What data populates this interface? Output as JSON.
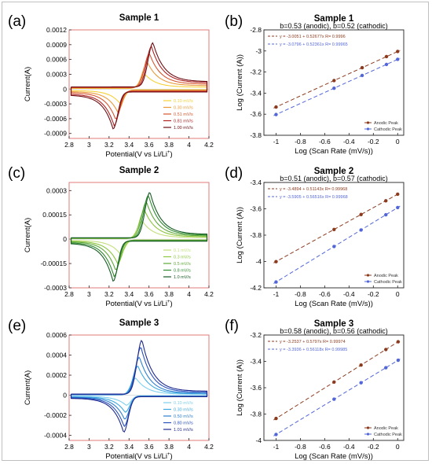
{
  "chart_data": [
    {
      "panel_label": "(a)",
      "type": "line",
      "title": "Sample 1",
      "xlabel": "Potential(V vs Li/Li",
      "xlabel_sup": "+",
      "xlabel_end": ")",
      "ylabel": "Current(A)",
      "xlim": [
        2.8,
        4.2
      ],
      "ylim": [
        -0.001,
        0.0012
      ],
      "xticks": [
        "2.8",
        "3",
        "3.2",
        "3.4",
        "3.6",
        "3.8",
        "4",
        "4.2"
      ],
      "xtick_values": [
        2.8,
        3.0,
        3.2,
        3.4,
        3.6,
        3.8,
        4.0,
        4.2
      ],
      "yticks": [
        "0.0012",
        "0.0009",
        "0.0006",
        "0.0003",
        "0",
        "-0.0003",
        "-0.0006",
        "-0.0009"
      ],
      "ytick_values": [
        0.0012,
        0.0009,
        0.0006,
        0.0003,
        0,
        -0.0003,
        -0.0006,
        -0.0009
      ],
      "legend_position": "bottom-right",
      "series": [
        {
          "name": "0.10 mV/s",
          "color": "#f5d13a",
          "ox_peak": [
            3.565,
            0.00029
          ],
          "red_peak": [
            3.305,
            -0.00028
          ],
          "base_high": 4e-05,
          "base_low": -3e-05
        },
        {
          "name": "0.30 mV/s",
          "color": "#e99a3a",
          "ox_peak": [
            3.585,
            0.00054
          ],
          "red_peak": [
            3.285,
            -0.00046
          ],
          "base_high": 7e-05,
          "base_low": -5e-05
        },
        {
          "name": "0.51 mV/s",
          "color": "#d7572f",
          "ox_peak": [
            3.605,
            0.00072
          ],
          "red_peak": [
            3.265,
            -0.00061
          ],
          "base_high": 0.0001,
          "base_low": -7e-05
        },
        {
          "name": "0.81 mV/s",
          "color": "#b02322",
          "ox_peak": [
            3.625,
            0.00086
          ],
          "red_peak": [
            3.25,
            -0.00074
          ],
          "base_high": 0.00013,
          "base_low": -0.0001
        },
        {
          "name": "1.00 mV/s",
          "color": "#6e0f14",
          "ox_peak": [
            3.64,
            0.00094
          ],
          "red_peak": [
            3.24,
            -0.00081
          ],
          "base_high": 0.00015,
          "base_low": -0.00012
        }
      ]
    },
    {
      "panel_label": "(b)",
      "type": "scatter",
      "title": "Sample 1",
      "subtitle": "b=0.53 (anodic), b=0.52 (cathodic)",
      "xlabel": "Log (Scan Rate (mV/s))",
      "ylabel": "Log (Current (A))",
      "xlim": [
        -1.1,
        0.05
      ],
      "ylim": [
        -3.8,
        -2.8
      ],
      "xticks": [
        "-1",
        "-0.8",
        "-0.6",
        "-0.4",
        "-0.2",
        "0"
      ],
      "xtick_values": [
        -1,
        -0.8,
        -0.6,
        -0.4,
        -0.2,
        0
      ],
      "yticks": [
        "-2.8",
        "-3",
        "-3.2",
        "-3.4",
        "-3.6",
        "-3.8"
      ],
      "ytick_values": [
        -2.8,
        -3.0,
        -3.2,
        -3.4,
        -3.6,
        -3.8
      ],
      "legend_position": "bottom-right",
      "x": [
        -1,
        -0.523,
        -0.292,
        -0.092,
        0
      ],
      "series": [
        {
          "name": "Anodic Peak",
          "color": "#8b3a1e",
          "intercept": -3.0051,
          "slope": 0.52677,
          "fit_label": "y = -3.0051 + 0.52677x   R= 0.9996"
        },
        {
          "name": "Cathodic Peak",
          "color": "#5266d8",
          "intercept": -3.0796,
          "slope": 0.52361,
          "fit_label": "y = -3.0796 + 0.52361x   R= 0.99965"
        }
      ]
    },
    {
      "panel_label": "(c)",
      "type": "line",
      "title": "Sample 2",
      "xlabel": "Potential(V vs Li/Li",
      "xlabel_sup": "+",
      "xlabel_end": ")",
      "ylabel": "Current(A)",
      "xlim": [
        2.8,
        4.2
      ],
      "ylim": [
        -0.0003,
        0.00035
      ],
      "xticks": [
        "2.8",
        "3",
        "3.2",
        "3.4",
        "3.6",
        "3.8",
        "4",
        "4.2"
      ],
      "xtick_values": [
        2.8,
        3.0,
        3.2,
        3.4,
        3.6,
        3.8,
        4.0,
        4.2
      ],
      "yticks": [
        "0.0003",
        "0.00015",
        "0",
        "-0.00015",
        "-0.0003"
      ],
      "ytick_values": [
        0.0003,
        0.00015,
        0,
        -0.00015,
        -0.0003
      ],
      "legend_position": "bottom-right",
      "series": [
        {
          "name": "0.1 mV/s",
          "color": "#c3df7c",
          "ox_peak": [
            3.535,
            0.00011
          ],
          "red_peak": [
            3.31,
            -9e-05
          ],
          "base_high": 1e-05,
          "base_low": -8e-06
        },
        {
          "name": "0.3 mV/s",
          "color": "#8dc63f",
          "ox_peak": [
            3.555,
            0.00018
          ],
          "red_peak": [
            3.285,
            -0.00015
          ],
          "base_high": 1.5e-05,
          "base_low": -1.2e-05
        },
        {
          "name": "0.5 mV/s",
          "color": "#5fa83a",
          "ox_peak": [
            3.575,
            0.00023
          ],
          "red_peak": [
            3.265,
            -0.00019
          ],
          "base_high": 2e-05,
          "base_low": -1.5e-05
        },
        {
          "name": "0.8 mV/s",
          "color": "#2f8a2f",
          "ox_peak": [
            3.595,
            0.00027
          ],
          "red_peak": [
            3.25,
            -0.00023
          ],
          "base_high": 2.5e-05,
          "base_low": -2e-05
        },
        {
          "name": "1.0 mV/s",
          "color": "#175c23",
          "ox_peak": [
            3.61,
            0.00029
          ],
          "red_peak": [
            3.24,
            -0.00026
          ],
          "base_high": 3e-05,
          "base_low": -2.5e-05
        }
      ]
    },
    {
      "panel_label": "(d)",
      "type": "scatter",
      "title": "Sample 2",
      "subtitle": "b=0.51 (anodic), b=0.57 (cathodic)",
      "xlabel": "Log (Scan Rate (mV/s))",
      "ylabel": "Log (Current (A))",
      "xlim": [
        -1.1,
        0.05
      ],
      "ylim": [
        -4.2,
        -3.4
      ],
      "xticks": [
        "-1",
        "-0.8",
        "-0.6",
        "-0.4",
        "-0.2",
        "0"
      ],
      "xtick_values": [
        -1,
        -0.8,
        -0.6,
        -0.4,
        -0.2,
        0
      ],
      "yticks": [
        "-3.4",
        "-3.6",
        "-3.8",
        "-4",
        "-4.2"
      ],
      "ytick_values": [
        -3.4,
        -3.6,
        -3.8,
        -4.0,
        -4.2
      ],
      "legend_position": "bottom-right",
      "x": [
        -1,
        -0.523,
        -0.301,
        -0.097,
        0
      ],
      "series": [
        {
          "name": "Anodic Peak",
          "color": "#8b3a1e",
          "intercept": -3.4894,
          "slope": 0.51143,
          "fit_label": "y = -3.4894 + 0.51143x   R= 0.99968"
        },
        {
          "name": "Cathodic Peak",
          "color": "#5266d8",
          "intercept": -3.5905,
          "slope": 0.56516,
          "fit_label": "y = -3.5905 + 0.56516x   R= 0.99968"
        }
      ]
    },
    {
      "panel_label": "(e)",
      "type": "line",
      "title": "Sample 3",
      "xlabel": "Potential(V vs Li/Li",
      "xlabel_sup": "+",
      "xlabel_end": ")",
      "ylabel": "Current(A)",
      "xlim": [
        2.8,
        4.2
      ],
      "ylim": [
        -0.00045,
        0.0006
      ],
      "xticks": [
        "2.8",
        "3",
        "3.2",
        "3.4",
        "3.6",
        "3.8",
        "4",
        "4.2"
      ],
      "xtick_values": [
        2.8,
        3.0,
        3.2,
        3.4,
        3.6,
        3.8,
        4.0,
        4.2
      ],
      "yticks": [
        "0.0006",
        "0.0004",
        "0.0002",
        "0",
        "-0.0002",
        "-0.0004"
      ],
      "ytick_values": [
        0.0006,
        0.0004,
        0.0002,
        0,
        -0.0002,
        -0.0004
      ],
      "legend_position": "bottom-right",
      "series": [
        {
          "name": "0.10 mV/s",
          "color": "#7fd0ee",
          "ox_peak": [
            3.47,
            0.00017
          ],
          "red_peak": [
            3.37,
            -0.0001
          ],
          "base_high": 1e-05,
          "base_low": -1e-05
        },
        {
          "name": "0.30 mV/s",
          "color": "#3ea9e0",
          "ox_peak": [
            3.49,
            0.00029
          ],
          "red_peak": [
            3.36,
            -0.00017
          ],
          "base_high": 1.5e-05,
          "base_low": -1.5e-05
        },
        {
          "name": "0.50 mV/s",
          "color": "#2f7fd0",
          "ox_peak": [
            3.505,
            0.00038
          ],
          "red_peak": [
            3.355,
            -0.00024
          ],
          "base_high": 2e-05,
          "base_low": -2e-05
        },
        {
          "name": "0.80 mV/s",
          "color": "#2950bd",
          "ox_peak": [
            3.52,
            0.00048
          ],
          "red_peak": [
            3.35,
            -0.00031
          ],
          "base_high": 3e-05,
          "base_low": -2.5e-05
        },
        {
          "name": "1.01 mV/s",
          "color": "#1f2a8f",
          "ox_peak": [
            3.53,
            0.00055
          ],
          "red_peak": [
            3.345,
            -0.00037
          ],
          "base_high": 4e-05,
          "base_low": -3e-05
        }
      ]
    },
    {
      "panel_label": "(f)",
      "type": "scatter",
      "title": "Sample 3",
      "subtitle": "b=0.58 (anodic), b=0.56 (cathodic)",
      "xlabel": "Log (Scan Rate (mV/s))",
      "ylabel": "Log (Current (A))",
      "xlim": [
        -1.1,
        0.05
      ],
      "ylim": [
        -4.0,
        -3.2
      ],
      "xticks": [
        "-1",
        "-0.8",
        "-0.6",
        "-0.4",
        "-0.2",
        "0"
      ],
      "xtick_values": [
        -1,
        -0.8,
        -0.6,
        -0.4,
        -0.2,
        0
      ],
      "yticks": [
        "-3.2",
        "-3.4",
        "-3.6",
        "-3.8",
        "-4"
      ],
      "ytick_values": [
        -3.2,
        -3.4,
        -3.6,
        -3.8,
        -4.0
      ],
      "legend_position": "bottom-right",
      "x": [
        -1,
        -0.523,
        -0.301,
        -0.097,
        0.004
      ],
      "series": [
        {
          "name": "Anodic Peak",
          "color": "#8b3a1e",
          "intercept": -3.2537,
          "slope": 0.5797,
          "fit_label": "y = -3.2537 + 0.5797x   R= 0.99974"
        },
        {
          "name": "Cathodic Peak",
          "color": "#5266d8",
          "intercept": -3.3936,
          "slope": 0.56118,
          "fit_label": "y = -3.3936 + 0.56118x   R= 0.99985"
        }
      ]
    }
  ]
}
